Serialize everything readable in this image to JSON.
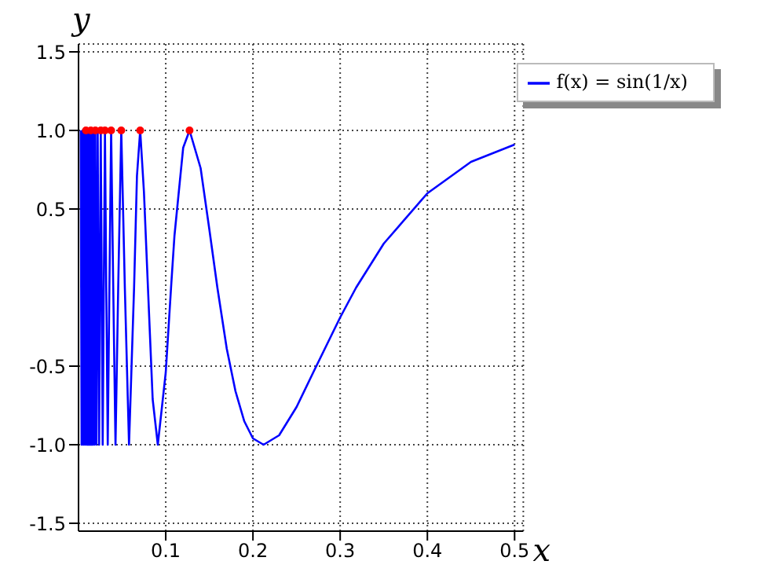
{
  "chart_data": {
    "type": "line",
    "xlabel": "x",
    "ylabel": "y",
    "xlim": [
      0,
      0.51
    ],
    "ylim": [
      -1.55,
      1.55
    ],
    "xticks": [
      0.1,
      0.2,
      0.3,
      0.4,
      0.5
    ],
    "yticks": [
      {
        "value": -1.5,
        "label": "-1.5"
      },
      {
        "value": -1,
        "label": "-1.0"
      },
      {
        "value": -0.5,
        "label": "-0.5"
      },
      {
        "value": 0.5,
        "label": "0.5"
      },
      {
        "value": 1,
        "label": "1.0"
      },
      {
        "value": 1.5,
        "label": "1.5"
      }
    ],
    "grid": true,
    "legend": "top right",
    "line_style": "solid",
    "marker": "none",
    "series": [
      {
        "name": "f(x) = sin(1/x)",
        "color": "#0000ff",
        "x": [
          0.0025,
          0.0035,
          0.0045,
          0.0055,
          0.0065,
          0.0075,
          0.0085,
          0.0095,
          0.0098,
          0.0101,
          0.0104,
          0.0108,
          0.0112,
          0.0116,
          0.012,
          0.0125,
          0.013,
          0.0135,
          0.0141,
          0.0148,
          0.0155,
          0.0163,
          0.0172,
          0.0182,
          0.0193,
          0.0205,
          0.022,
          0.0236,
          0.0255,
          0.0277,
          0.0303,
          0.0318,
          0.0335,
          0.0354,
          0.0374,
          0.0398,
          0.0424,
          0.0455,
          0.049,
          0.0531,
          0.0579,
          0.0637,
          0.067,
          0.0707,
          0.075,
          0.0796,
          0.085,
          0.0909,
          0.1,
          0.1061,
          0.11,
          0.12,
          0.1273,
          0.14,
          0.15,
          0.1592,
          0.17,
          0.18,
          0.19,
          0.2,
          0.2122,
          0.23,
          0.25,
          0.27,
          0.3,
          0.3183,
          0.35,
          0.4,
          0.45,
          0.5
        ],
        "values": [
          1,
          -1,
          1,
          -1,
          1,
          -1,
          1,
          -1,
          1,
          -1,
          1,
          -1,
          1,
          -1,
          1,
          -1,
          1,
          -1,
          1,
          -1,
          1,
          -1,
          1,
          -1,
          1,
          -1,
          1,
          -1,
          1,
          -1,
          1,
          0,
          -1,
          0,
          1,
          0,
          -1,
          0,
          1,
          0,
          -1,
          0,
          0.71,
          1,
          0.61,
          0,
          -0.71,
          -1,
          -0.54,
          0,
          0.33,
          0.89,
          1,
          0.76,
          0.37,
          0,
          -0.39,
          -0.66,
          -0.85,
          -0.96,
          -1,
          -0.94,
          -0.76,
          -0.53,
          -0.19,
          0,
          0.28,
          0.6,
          0.8,
          0.91
        ]
      },
      {
        "type": "scatter",
        "color": "#ff0000",
        "marker": "circle",
        "x": [
          0.0085,
          0.0141,
          0.0193,
          0.0255,
          0.0303,
          0.0374,
          0.049,
          0.0707,
          0.1273
        ],
        "values": [
          1,
          1,
          1,
          1,
          1,
          1,
          1,
          1,
          1
        ]
      }
    ]
  }
}
